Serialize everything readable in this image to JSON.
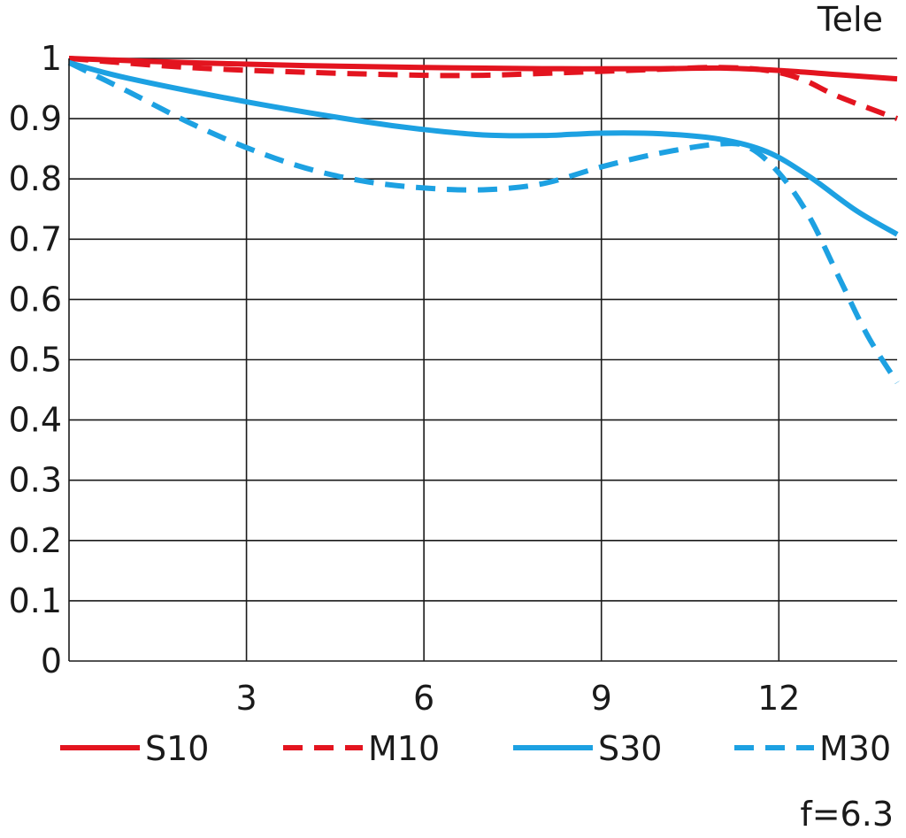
{
  "chart_data": {
    "type": "line",
    "title": "Tele",
    "footnote": "f=6.3",
    "xlabel": "",
    "ylabel": "",
    "xlim": [
      0,
      14
    ],
    "ylim": [
      0,
      1
    ],
    "xticks": [
      3,
      6,
      9,
      12
    ],
    "xtick_labels": [
      "3",
      "6",
      "9",
      "12"
    ],
    "yticks": [
      0,
      0.1,
      0.2,
      0.3,
      0.4,
      0.5,
      0.6,
      0.7,
      0.8,
      0.9,
      1
    ],
    "ytick_labels": [
      "0",
      "0.1",
      "0.2",
      "0.3",
      "0.4",
      "0.5",
      "0.6",
      "0.7",
      "0.8",
      "0.9",
      "1"
    ],
    "grid": true,
    "legend_position": "bottom",
    "series": [
      {
        "name": "S10",
        "color": "#e3141f",
        "style": "solid",
        "x": [
          0,
          2,
          4,
          6,
          8,
          10,
          11,
          12,
          13,
          14
        ],
        "y": [
          1.0,
          0.993,
          0.988,
          0.985,
          0.983,
          0.983,
          0.984,
          0.98,
          0.973,
          0.966
        ]
      },
      {
        "name": "M10",
        "color": "#e3141f",
        "style": "dashed",
        "x": [
          0,
          2,
          4,
          6,
          7,
          8,
          10,
          11,
          11.8,
          12.4,
          13,
          14
        ],
        "y": [
          1.0,
          0.985,
          0.977,
          0.972,
          0.972,
          0.975,
          0.982,
          0.985,
          0.98,
          0.965,
          0.937,
          0.9
        ]
      },
      {
        "name": "S30",
        "color": "#1da1e2",
        "style": "solid",
        "x": [
          0,
          1,
          3,
          5,
          6,
          7,
          8,
          9,
          10,
          11,
          11.8,
          12.5,
          13.3,
          14
        ],
        "y": [
          0.993,
          0.967,
          0.928,
          0.895,
          0.882,
          0.873,
          0.872,
          0.876,
          0.875,
          0.866,
          0.845,
          0.805,
          0.748,
          0.708
        ]
      },
      {
        "name": "M30",
        "color": "#1da1e2",
        "style": "dashed",
        "x": [
          0,
          1,
          2,
          3,
          4,
          5,
          6,
          7,
          8,
          9,
          10,
          11,
          11.5,
          12,
          12.5,
          13,
          13.5,
          14
        ],
        "y": [
          0.993,
          0.945,
          0.895,
          0.852,
          0.818,
          0.796,
          0.785,
          0.782,
          0.792,
          0.82,
          0.843,
          0.858,
          0.852,
          0.81,
          0.74,
          0.64,
          0.54,
          0.462
        ]
      }
    ]
  }
}
